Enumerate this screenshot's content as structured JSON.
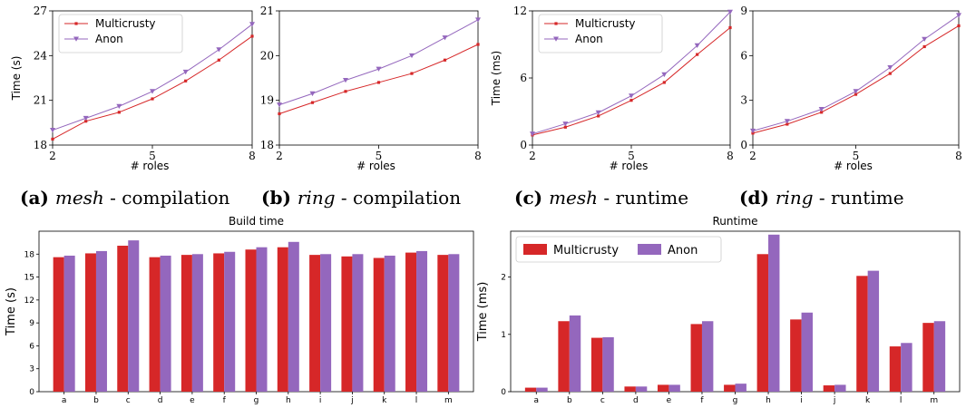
{
  "colors": {
    "multicrusty": "#d62728",
    "anon": "#9467bd"
  },
  "chart_data": [
    {
      "id": "a",
      "type": "line",
      "caption": {
        "letter": "(a)",
        "name": "mesh",
        "rest": "- compilation"
      },
      "xlabel": "# roles",
      "ylabel": "Time (s)",
      "xlim": [
        2,
        8
      ],
      "ylim": [
        18,
        27
      ],
      "xticks": [
        2,
        5,
        8
      ],
      "yticks": [
        18,
        21,
        24,
        27
      ],
      "x": [
        2,
        3,
        4,
        5,
        6,
        7,
        8
      ],
      "series": [
        {
          "name": "Multicrusty",
          "values": [
            18.4,
            19.6,
            20.2,
            21.1,
            22.3,
            23.7,
            25.3
          ]
        },
        {
          "name": "Anon",
          "values": [
            19.0,
            19.8,
            20.6,
            21.6,
            22.9,
            24.4,
            26.1
          ]
        }
      ],
      "legend": "top-left"
    },
    {
      "id": "b",
      "type": "line",
      "caption": {
        "letter": "(b)",
        "name": "ring",
        "rest": "- compilation"
      },
      "xlabel": "# roles",
      "ylabel": "",
      "xlim": [
        2,
        8
      ],
      "ylim": [
        18,
        21
      ],
      "xticks": [
        2,
        5,
        8
      ],
      "yticks": [
        18,
        19,
        20,
        21
      ],
      "x": [
        2,
        3,
        4,
        5,
        6,
        7,
        8
      ],
      "series": [
        {
          "name": "Multicrusty",
          "values": [
            18.7,
            18.95,
            19.2,
            19.4,
            19.6,
            19.9,
            20.25
          ]
        },
        {
          "name": "Anon",
          "values": [
            18.9,
            19.15,
            19.45,
            19.7,
            20.0,
            20.4,
            20.8
          ]
        }
      ]
    },
    {
      "id": "c",
      "type": "line",
      "caption": {
        "letter": "(c)",
        "name": "mesh",
        "rest": "- runtime"
      },
      "xlabel": "# roles",
      "ylabel": "Time (ms)",
      "xlim": [
        2,
        8
      ],
      "ylim": [
        0,
        12
      ],
      "xticks": [
        2,
        5,
        8
      ],
      "yticks": [
        0,
        6,
        12
      ],
      "x": [
        2,
        3,
        4,
        5,
        6,
        7,
        8
      ],
      "series": [
        {
          "name": "Multicrusty",
          "values": [
            0.9,
            1.6,
            2.6,
            4.0,
            5.6,
            8.1,
            10.5
          ]
        },
        {
          "name": "Anon",
          "values": [
            1.0,
            1.9,
            2.9,
            4.4,
            6.3,
            8.9,
            11.9
          ]
        }
      ],
      "legend": "top-left"
    },
    {
      "id": "d",
      "type": "line",
      "caption": {
        "letter": "(d)",
        "name": "ring",
        "rest": "- runtime"
      },
      "xlabel": "# roles",
      "ylabel": "",
      "xlim": [
        2,
        8
      ],
      "ylim": [
        0,
        9
      ],
      "xticks": [
        2,
        5,
        8
      ],
      "yticks": [
        0,
        3,
        6,
        9
      ],
      "x": [
        2,
        3,
        4,
        5,
        6,
        7,
        8
      ],
      "series": [
        {
          "name": "Multicrusty",
          "values": [
            0.8,
            1.4,
            2.2,
            3.4,
            4.8,
            6.6,
            8.0
          ]
        },
        {
          "name": "Anon",
          "values": [
            0.95,
            1.6,
            2.4,
            3.6,
            5.2,
            7.1,
            8.7
          ]
        }
      ]
    },
    {
      "id": "e",
      "type": "bar",
      "title": "Build time",
      "ylabel": "Time (s)",
      "ylim": [
        0,
        21
      ],
      "yticks": [
        0,
        3,
        6,
        9,
        12,
        15,
        18
      ],
      "categories": [
        "a",
        "b",
        "c",
        "d",
        "e",
        "f",
        "g",
        "h",
        "i",
        "j",
        "k",
        "l",
        "m"
      ],
      "series": [
        {
          "name": "Multicrusty",
          "values": [
            17.6,
            18.1,
            19.1,
            17.6,
            17.9,
            18.1,
            18.6,
            18.9,
            17.9,
            17.7,
            17.5,
            18.2,
            17.9
          ]
        },
        {
          "name": "Anon",
          "values": [
            17.8,
            18.4,
            19.8,
            17.8,
            18.0,
            18.3,
            18.9,
            19.6,
            18.0,
            18.0,
            17.8,
            18.4,
            18.0
          ]
        }
      ]
    },
    {
      "id": "f",
      "type": "bar",
      "title": "Runtime",
      "ylabel": "Time (ms)",
      "ylim": [
        0,
        2.8
      ],
      "yticks": [
        0,
        1,
        2
      ],
      "categories": [
        "a",
        "b",
        "c",
        "d",
        "e",
        "f",
        "g",
        "h",
        "i",
        "j",
        "k",
        "l",
        "m"
      ],
      "series": [
        {
          "name": "Multicrusty",
          "values": [
            0.07,
            1.23,
            0.94,
            0.09,
            0.12,
            1.18,
            0.12,
            2.4,
            1.26,
            0.11,
            2.02,
            0.79,
            1.2
          ]
        },
        {
          "name": "Anon",
          "values": [
            0.07,
            1.33,
            0.95,
            0.09,
            0.12,
            1.23,
            0.14,
            2.74,
            1.38,
            0.12,
            2.11,
            0.85,
            1.23
          ]
        }
      ],
      "legend": "top-left"
    }
  ]
}
